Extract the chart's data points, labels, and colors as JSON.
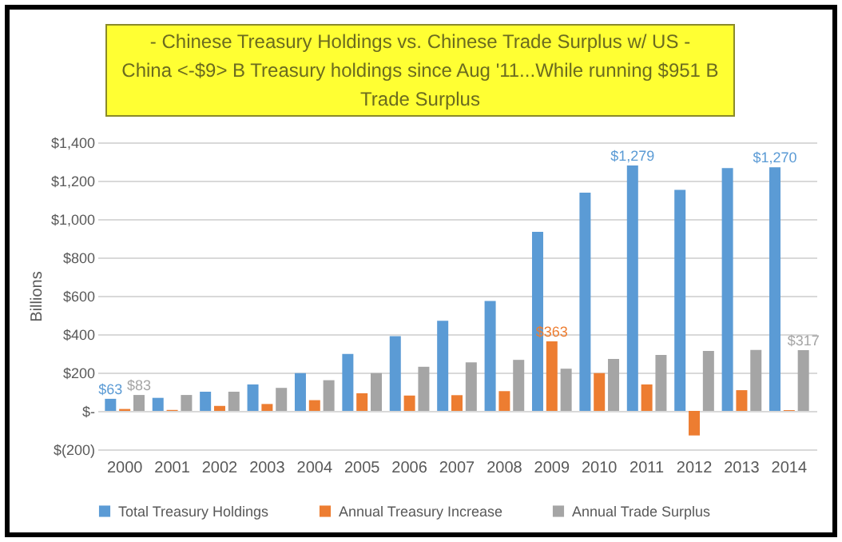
{
  "chart_data": {
    "type": "bar",
    "title": "- Chinese Treasury Holdings vs. Chinese Trade Surplus w/ US -",
    "subtitle": "China <-$9> B Treasury holdings since Aug '11...While running $951 B Trade Surplus",
    "ylabel": "Billions",
    "categories": [
      "2000",
      "2001",
      "2002",
      "2003",
      "2004",
      "2005",
      "2006",
      "2007",
      "2008",
      "2009",
      "2010",
      "2011",
      "2012",
      "2013",
      "2014"
    ],
    "series": [
      {
        "name": "Total Treasury Holdings",
        "color": "#5b9bd5",
        "values": [
          63,
          68,
          100,
          138,
          197,
          297,
          390,
          470,
          573,
          933,
          1137,
          1279,
          1152,
          1266,
          1270
        ],
        "value_labels": [
          "$63",
          null,
          null,
          null,
          null,
          null,
          null,
          null,
          null,
          null,
          null,
          "$1,279",
          null,
          null,
          "$1,270"
        ]
      },
      {
        "name": "Annual Treasury Increase",
        "color": "#ed7d31",
        "values": [
          10,
          5,
          26,
          36,
          56,
          92,
          80,
          82,
          103,
          363,
          197,
          138,
          -128,
          108,
          4
        ],
        "value_labels": [
          null,
          null,
          null,
          null,
          null,
          null,
          null,
          null,
          null,
          "$363",
          null,
          null,
          null,
          null,
          null
        ]
      },
      {
        "name": "Annual Trade Surplus",
        "color": "#a5a5a5",
        "values": [
          83,
          83,
          100,
          120,
          160,
          197,
          230,
          253,
          266,
          220,
          271,
          292,
          312,
          318,
          317
        ],
        "value_labels": [
          "$83",
          null,
          null,
          null,
          null,
          null,
          null,
          null,
          null,
          null,
          null,
          null,
          null,
          null,
          "$317"
        ]
      }
    ],
    "ylim": [
      -200,
      1400
    ],
    "yticks": [
      {
        "value": -200,
        "label": "$(200)"
      },
      {
        "value": 0,
        "label": "$-"
      },
      {
        "value": 200,
        "label": "$200"
      },
      {
        "value": 400,
        "label": "$400"
      },
      {
        "value": 600,
        "label": "$600"
      },
      {
        "value": 800,
        "label": "$800"
      },
      {
        "value": 1000,
        "label": "$1,000"
      },
      {
        "value": 1200,
        "label": "$1,200"
      },
      {
        "value": 1400,
        "label": "$1,400"
      }
    ],
    "grid": "y",
    "legend": "bottom"
  }
}
